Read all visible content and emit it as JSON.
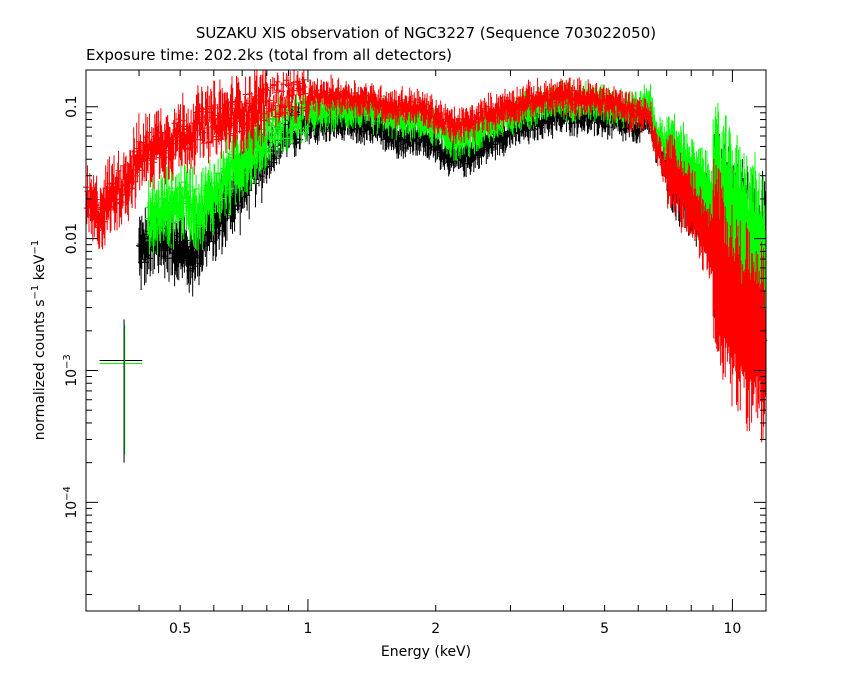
{
  "chart_data": {
    "type": "scatter",
    "title": "SUZAKU XIS observation of NGC3227 (Sequence 703022050)",
    "subtitle": "Exposure time: 202.2ks (total from all detectors)",
    "xlabel": "Energy (keV)",
    "ylabel": {
      "base": "normalized counts s",
      "exp1": "−1",
      "mid": " keV",
      "exp2": "−1"
    },
    "x_scale": "log",
    "y_scale": "log",
    "xlim": [
      0.3,
      12.0
    ],
    "ylim": [
      1.5e-05,
      0.19
    ],
    "x_ticks": [
      {
        "value": 0.5,
        "label": "0.5"
      },
      {
        "value": 1,
        "label": "1"
      },
      {
        "value": 2,
        "label": "2"
      },
      {
        "value": 5,
        "label": "5"
      },
      {
        "value": 10,
        "label": "10"
      }
    ],
    "y_ticks": [
      {
        "value": 0.1,
        "label": "0.1",
        "exp": ""
      },
      {
        "value": 0.01,
        "label": "0.01",
        "exp": ""
      },
      {
        "value": 0.001,
        "label": "10",
        "exp": "−3"
      },
      {
        "value": 0.0001,
        "label": "10",
        "exp": "−4"
      }
    ],
    "grid": false,
    "legend": "none",
    "series": [
      {
        "color": "#000000",
        "x": [
          0.4,
          0.43,
          0.46,
          0.5,
          0.53,
          0.56,
          0.6,
          0.65,
          0.7,
          0.75,
          0.8,
          0.85,
          0.9,
          1.0,
          1.1,
          1.2,
          1.3,
          1.4,
          1.5,
          1.6,
          1.7,
          1.8,
          2.0,
          2.2,
          2.4,
          2.6,
          2.8,
          3.0,
          3.3,
          3.6,
          4.0,
          4.5,
          5.0,
          5.5,
          6.0,
          6.4,
          6.6,
          7.0,
          7.5,
          8.0,
          9.0,
          10.0,
          11.0,
          12.0
        ],
        "y": [
          0.008,
          0.009,
          0.01,
          0.009,
          0.007,
          0.01,
          0.013,
          0.018,
          0.025,
          0.035,
          0.045,
          0.055,
          0.065,
          0.07,
          0.075,
          0.075,
          0.072,
          0.068,
          0.065,
          0.06,
          0.055,
          0.06,
          0.05,
          0.04,
          0.042,
          0.05,
          0.058,
          0.065,
          0.072,
          0.08,
          0.085,
          0.085,
          0.08,
          0.075,
          0.07,
          0.085,
          0.05,
          0.035,
          0.025,
          0.02,
          0.013,
          0.008,
          0.006,
          0.005
        ]
      },
      {
        "color": "#ff0000",
        "x": [
          0.3,
          0.32,
          0.34,
          0.36,
          0.38,
          0.4,
          0.43,
          0.46,
          0.5,
          0.55,
          0.6,
          0.65,
          0.7,
          0.75,
          0.8,
          0.85,
          0.9,
          1.0,
          1.1,
          1.2,
          1.3,
          1.4,
          1.5,
          1.6,
          1.7,
          1.8,
          2.0,
          2.2,
          2.4,
          2.6,
          2.8,
          3.0,
          3.3,
          3.6,
          4.0,
          4.5,
          5.0,
          5.5,
          6.0,
          6.4,
          6.6,
          7.0,
          7.5,
          8.0,
          8.5,
          9.0,
          9.5,
          10.0,
          11.0,
          12.0
        ],
        "y": [
          0.018,
          0.015,
          0.02,
          0.025,
          0.03,
          0.04,
          0.05,
          0.055,
          0.06,
          0.07,
          0.075,
          0.08,
          0.09,
          0.095,
          0.11,
          0.115,
          0.12,
          0.115,
          0.12,
          0.12,
          0.115,
          0.11,
          0.105,
          0.1,
          0.1,
          0.1,
          0.085,
          0.07,
          0.075,
          0.085,
          0.095,
          0.1,
          0.11,
          0.115,
          0.12,
          0.115,
          0.11,
          0.1,
          0.09,
          0.085,
          0.05,
          0.035,
          0.025,
          0.018,
          0.012,
          0.008,
          0.005,
          0.003,
          0.002,
          0.0015
        ]
      },
      {
        "color": "#00ff00",
        "x": [
          0.42,
          0.45,
          0.48,
          0.52,
          0.56,
          0.6,
          0.65,
          0.7,
          0.75,
          0.8,
          0.85,
          0.9,
          1.0,
          1.1,
          1.2,
          1.3,
          1.4,
          1.5,
          1.6,
          1.7,
          1.8,
          2.0,
          2.2,
          2.4,
          2.6,
          2.8,
          3.0,
          3.3,
          3.6,
          4.0,
          4.5,
          5.0,
          5.5,
          6.0,
          6.4,
          6.6,
          7.0,
          7.5,
          8.0,
          9.0,
          10.0,
          11.0,
          12.0
        ],
        "y": [
          0.013,
          0.016,
          0.018,
          0.02,
          0.016,
          0.022,
          0.03,
          0.04,
          0.05,
          0.06,
          0.07,
          0.08,
          0.085,
          0.09,
          0.095,
          0.095,
          0.09,
          0.085,
          0.08,
          0.078,
          0.08,
          0.07,
          0.055,
          0.058,
          0.068,
          0.078,
          0.085,
          0.095,
          0.105,
          0.11,
          0.11,
          0.105,
          0.1,
          0.095,
          0.11,
          0.065,
          0.05,
          0.04,
          0.03,
          0.02,
          0.012,
          0.008,
          0.005
        ]
      }
    ]
  }
}
